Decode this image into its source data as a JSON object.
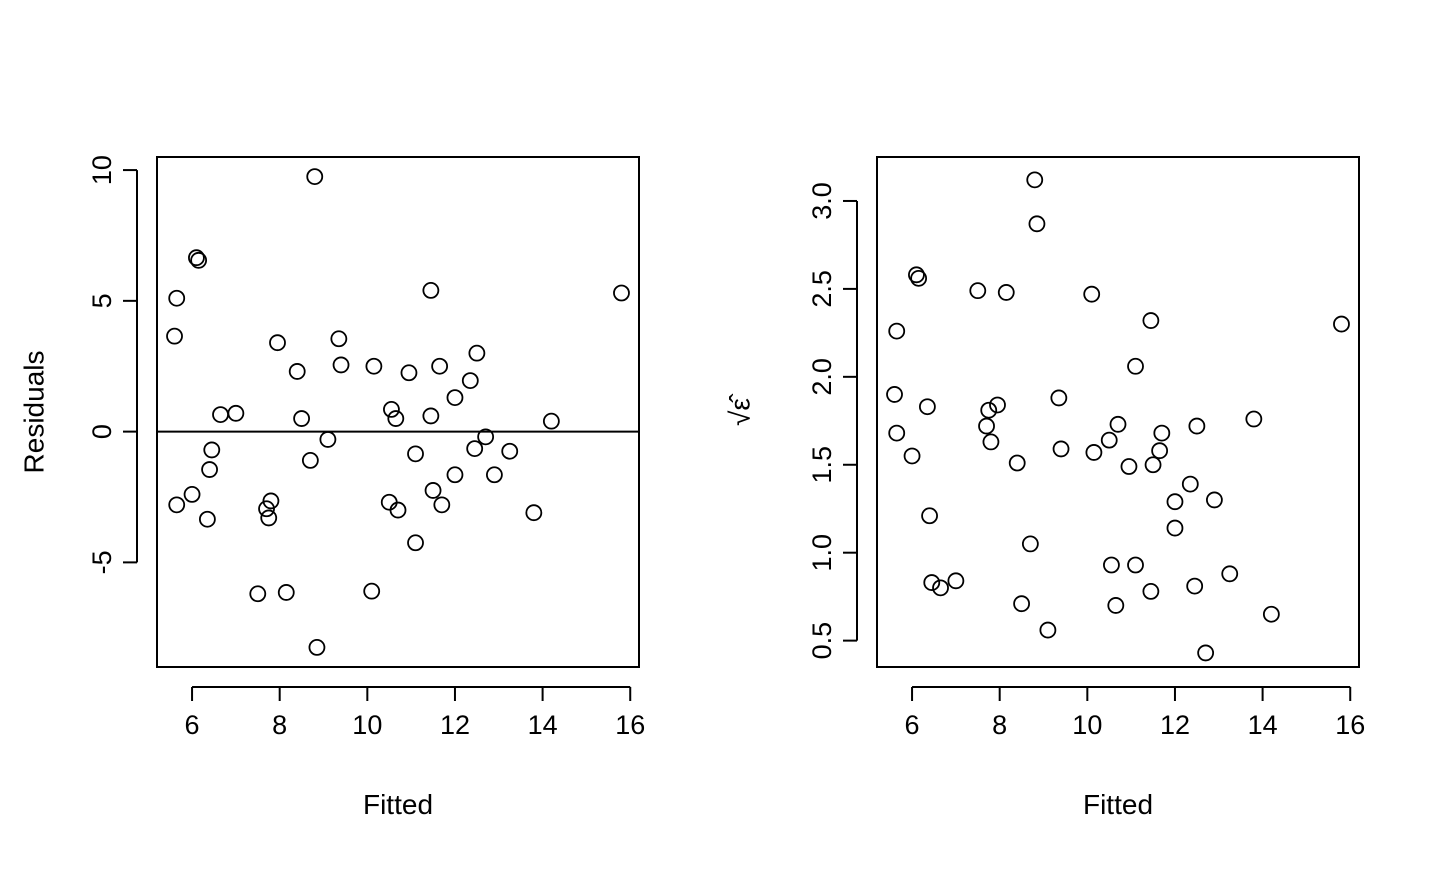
{
  "chart_data": [
    {
      "type": "scatter",
      "title": "",
      "xlabel": "Fitted",
      "ylabel": "Residuals",
      "xlim": [
        5.2,
        16.2
      ],
      "ylim": [
        -9.0,
        10.5
      ],
      "xticks": [
        6,
        8,
        10,
        12,
        14,
        16
      ],
      "yticks": [
        -5,
        0,
        5,
        10
      ],
      "yticks_labels": [
        "-5",
        "0",
        "5",
        "10"
      ],
      "reference_line": 0,
      "grid": false,
      "points": [
        {
          "x": 5.6,
          "y": 3.65
        },
        {
          "x": 5.65,
          "y": 5.1
        },
        {
          "x": 5.65,
          "y": -2.8
        },
        {
          "x": 6.0,
          "y": -2.4
        },
        {
          "x": 6.1,
          "y": 6.65
        },
        {
          "x": 6.15,
          "y": 6.55
        },
        {
          "x": 6.35,
          "y": -3.35
        },
        {
          "x": 6.4,
          "y": -1.45
        },
        {
          "x": 6.45,
          "y": -0.7
        },
        {
          "x": 6.65,
          "y": 0.65
        },
        {
          "x": 7.0,
          "y": 0.7
        },
        {
          "x": 7.5,
          "y": -6.2
        },
        {
          "x": 7.7,
          "y": -2.95
        },
        {
          "x": 7.75,
          "y": -3.3
        },
        {
          "x": 7.8,
          "y": -2.65
        },
        {
          "x": 7.95,
          "y": 3.4
        },
        {
          "x": 8.15,
          "y": -6.15
        },
        {
          "x": 8.4,
          "y": 2.3
        },
        {
          "x": 8.5,
          "y": 0.5
        },
        {
          "x": 8.7,
          "y": -1.1
        },
        {
          "x": 8.8,
          "y": 9.75
        },
        {
          "x": 8.85,
          "y": -8.25
        },
        {
          "x": 9.1,
          "y": -0.3
        },
        {
          "x": 9.35,
          "y": 3.55
        },
        {
          "x": 9.4,
          "y": 2.55
        },
        {
          "x": 10.1,
          "y": -6.1
        },
        {
          "x": 10.15,
          "y": 2.5
        },
        {
          "x": 10.5,
          "y": -2.7
        },
        {
          "x": 10.55,
          "y": 0.85
        },
        {
          "x": 10.65,
          "y": 0.5
        },
        {
          "x": 10.7,
          "y": -3.0
        },
        {
          "x": 10.95,
          "y": 2.25
        },
        {
          "x": 11.1,
          "y": -0.85
        },
        {
          "x": 11.1,
          "y": -4.25
        },
        {
          "x": 11.45,
          "y": 5.4
        },
        {
          "x": 11.45,
          "y": 0.6
        },
        {
          "x": 11.5,
          "y": -2.25
        },
        {
          "x": 11.65,
          "y": 2.5
        },
        {
          "x": 11.7,
          "y": -2.8
        },
        {
          "x": 12.0,
          "y": 1.3
        },
        {
          "x": 12.0,
          "y": -1.65
        },
        {
          "x": 12.35,
          "y": 1.95
        },
        {
          "x": 12.45,
          "y": -0.65
        },
        {
          "x": 12.5,
          "y": 3.0
        },
        {
          "x": 12.7,
          "y": -0.2
        },
        {
          "x": 12.9,
          "y": -1.65
        },
        {
          "x": 13.25,
          "y": -0.75
        },
        {
          "x": 13.8,
          "y": -3.1
        },
        {
          "x": 14.2,
          "y": 0.4
        },
        {
          "x": 15.8,
          "y": 5.3
        }
      ]
    },
    {
      "type": "scatter",
      "title": "",
      "xlabel": "Fitted",
      "ylabel": "√ε̂",
      "xlim": [
        5.2,
        16.2
      ],
      "ylim": [
        0.35,
        3.25
      ],
      "xticks": [
        6,
        8,
        10,
        12,
        14,
        16
      ],
      "yticks": [
        0.5,
        1.0,
        1.5,
        2.0,
        2.5,
        3.0
      ],
      "yticks_labels": [
        "0.5",
        "1.0",
        "1.5",
        "2.0",
        "2.5",
        "3.0"
      ],
      "grid": false,
      "points": [
        {
          "x": 5.6,
          "y": 1.9
        },
        {
          "x": 5.65,
          "y": 1.68
        },
        {
          "x": 5.65,
          "y": 2.26
        },
        {
          "x": 6.0,
          "y": 1.55
        },
        {
          "x": 6.1,
          "y": 2.58
        },
        {
          "x": 6.15,
          "y": 2.56
        },
        {
          "x": 6.35,
          "y": 1.83
        },
        {
          "x": 6.4,
          "y": 1.21
        },
        {
          "x": 6.45,
          "y": 0.83
        },
        {
          "x": 6.65,
          "y": 0.8
        },
        {
          "x": 7.0,
          "y": 0.84
        },
        {
          "x": 7.5,
          "y": 2.49
        },
        {
          "x": 7.7,
          "y": 1.72
        },
        {
          "x": 7.75,
          "y": 1.81
        },
        {
          "x": 7.8,
          "y": 1.63
        },
        {
          "x": 7.95,
          "y": 1.84
        },
        {
          "x": 8.15,
          "y": 2.48
        },
        {
          "x": 8.4,
          "y": 1.51
        },
        {
          "x": 8.5,
          "y": 0.71
        },
        {
          "x": 8.7,
          "y": 1.05
        },
        {
          "x": 8.8,
          "y": 3.12
        },
        {
          "x": 8.85,
          "y": 2.87
        },
        {
          "x": 9.1,
          "y": 0.56
        },
        {
          "x": 9.35,
          "y": 1.88
        },
        {
          "x": 9.4,
          "y": 1.59
        },
        {
          "x": 10.1,
          "y": 2.47
        },
        {
          "x": 10.15,
          "y": 1.57
        },
        {
          "x": 10.5,
          "y": 1.64
        },
        {
          "x": 10.55,
          "y": 0.93
        },
        {
          "x": 10.65,
          "y": 0.7
        },
        {
          "x": 10.7,
          "y": 1.73
        },
        {
          "x": 10.95,
          "y": 1.49
        },
        {
          "x": 11.1,
          "y": 0.93
        },
        {
          "x": 11.1,
          "y": 2.06
        },
        {
          "x": 11.45,
          "y": 2.32
        },
        {
          "x": 11.45,
          "y": 0.78
        },
        {
          "x": 11.5,
          "y": 1.5
        },
        {
          "x": 11.65,
          "y": 1.58
        },
        {
          "x": 11.7,
          "y": 1.68
        },
        {
          "x": 12.0,
          "y": 1.14
        },
        {
          "x": 12.0,
          "y": 1.29
        },
        {
          "x": 12.35,
          "y": 1.39
        },
        {
          "x": 12.45,
          "y": 0.81
        },
        {
          "x": 12.5,
          "y": 1.72
        },
        {
          "x": 12.7,
          "y": 0.43
        },
        {
          "x": 12.9,
          "y": 1.3
        },
        {
          "x": 13.25,
          "y": 0.88
        },
        {
          "x": 13.8,
          "y": 1.76
        },
        {
          "x": 14.2,
          "y": 0.65
        },
        {
          "x": 15.8,
          "y": 2.3
        }
      ]
    }
  ]
}
